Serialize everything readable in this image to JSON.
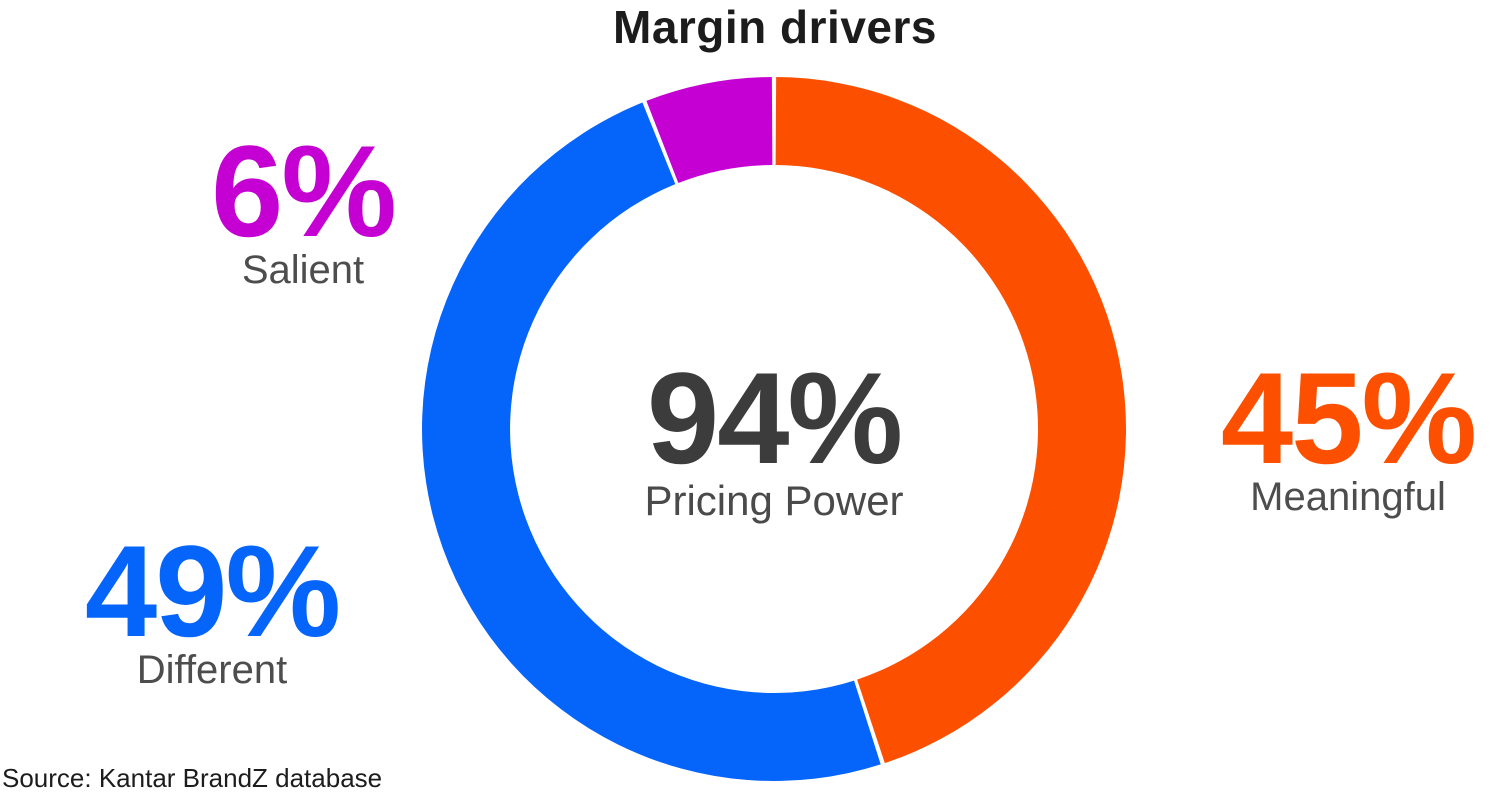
{
  "title": "Margin drivers",
  "donut_center": {
    "value": "94%",
    "label": "Pricing Power"
  },
  "callouts": {
    "salient": {
      "value": "6%",
      "label": "Salient",
      "color": "#C400D2"
    },
    "different": {
      "value": "49%",
      "label": "Different",
      "color": "#0564FA"
    },
    "meaningful": {
      "value": "45%",
      "label": "Meaningful",
      "color": "#FC5000"
    }
  },
  "source": "Source: Kantar BrandZ database",
  "chart_data": {
    "type": "pie",
    "subtype": "donut",
    "title": "Margin drivers",
    "start_angle_deg": 0,
    "direction": "clockwise",
    "inner_radius_ratio": 0.75,
    "slices": [
      {
        "label": "Meaningful",
        "value": 45,
        "display": "45%",
        "color": "#FC5000"
      },
      {
        "label": "Different",
        "value": 49,
        "display": "49%",
        "color": "#0564FA"
      },
      {
        "label": "Salient",
        "value": 6,
        "display": "6%",
        "color": "#C400D2"
      }
    ],
    "center_text": {
      "value": "94%",
      "label": "Pricing Power"
    },
    "segment_gap": "thin white radial gaps between slices",
    "legend_position": "none (values labeled beside chart)",
    "source": "Source: Kantar BrandZ database",
    "text_colors": {
      "title": "#1C1C1C",
      "center_value": "#3C3C3C",
      "labels": "#4D4D4D"
    }
  }
}
